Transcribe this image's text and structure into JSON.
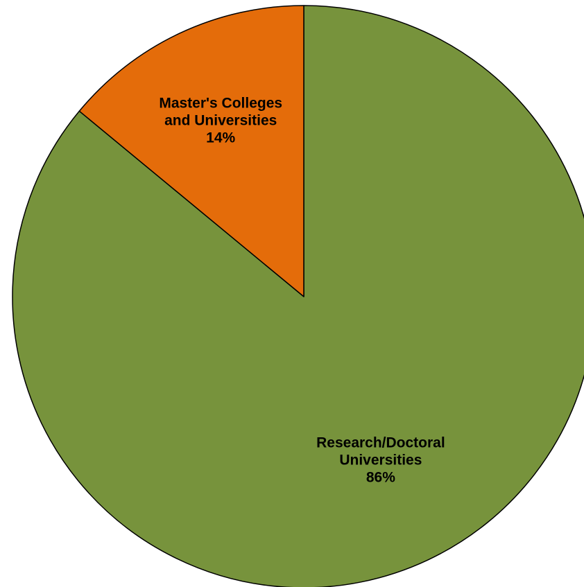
{
  "chart_data": {
    "type": "pie",
    "title": "",
    "start_angle_deg": 0,
    "direction": "clockwise",
    "slices": [
      {
        "label": [
          "Research/Doctoral",
          "Universities"
        ],
        "value": 86,
        "value_label": "86%",
        "color": "#77933C"
      },
      {
        "label": [
          "Master's Colleges",
          "and Universities"
        ],
        "value": 14,
        "value_label": "14%",
        "color": "#E46C0A"
      }
    ],
    "legend": "none"
  }
}
